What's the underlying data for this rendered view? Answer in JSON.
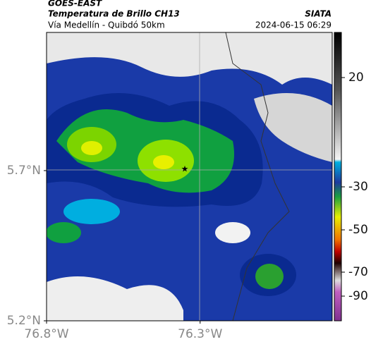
{
  "header": {
    "title": "GOES-EAST",
    "subtitle": "Temperatura de Brillo CH13",
    "location": "Vía Medellín - Quibdó 50km",
    "source": "SIATA",
    "datetime": "2024-06-15 06:29"
  },
  "map": {
    "lat_lim": [
      5.2,
      6.16
    ],
    "lon_lim": [
      -76.8,
      -75.87
    ],
    "lat_ticks": [
      {
        "value": 5.2,
        "label": "5.2°N"
      },
      {
        "value": 5.7,
        "label": "5.7°N"
      }
    ],
    "lon_ticks": [
      {
        "value": -76.8,
        "label": "76.8°W"
      },
      {
        "value": -76.3,
        "label": "76.3°W"
      }
    ]
  },
  "colorbar": {
    "ticks": [
      20,
      -30,
      -50,
      -70,
      -90
    ]
  }
}
